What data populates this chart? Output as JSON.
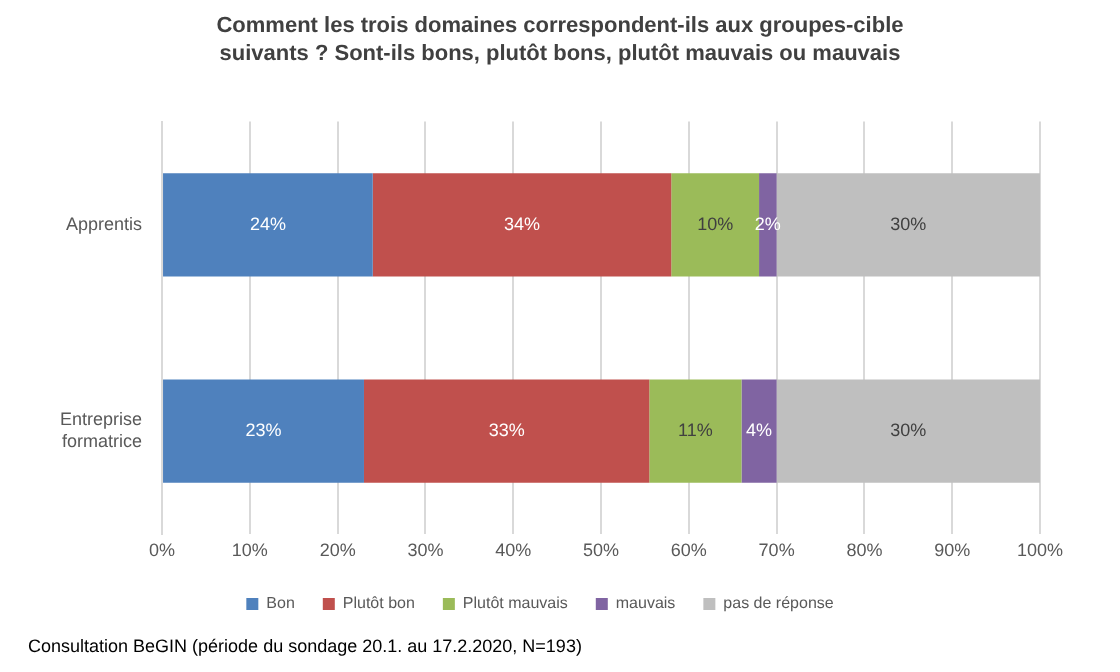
{
  "chart_data": {
    "type": "bar",
    "orientation": "horizontal",
    "stacked": true,
    "title": "Comment les trois domaines correspondent-ils aux groupes-cible suivants ? Sont-ils bons, plutôt bons, plutôt mauvais ou mauvais",
    "categories": [
      "Apprentis",
      "Entreprise formatrice"
    ],
    "series": [
      {
        "name": "Bon",
        "color": "#4f81bd",
        "values": [
          24,
          23
        ],
        "value_labels": [
          "24%",
          "23%"
        ]
      },
      {
        "name": "Plutôt bon",
        "color": "#c0504d",
        "values": [
          34,
          32.5
        ],
        "value_labels": [
          "34%",
          "33%"
        ]
      },
      {
        "name": "Plutôt mauvais",
        "color": "#9bbb59",
        "values": [
          10,
          10.5
        ],
        "value_labels": [
          "10%",
          "11%"
        ]
      },
      {
        "name": "mauvais",
        "color": "#8064a2",
        "values": [
          2,
          4
        ],
        "value_labels": [
          "2%",
          "4%"
        ]
      },
      {
        "name": "pas de réponse",
        "color": "#bfbfbf",
        "values": [
          30,
          30
        ],
        "value_labels": [
          "30%",
          "30%"
        ]
      }
    ],
    "xlim": [
      0,
      100
    ],
    "xticks": [
      {
        "value": 0,
        "label": "0%"
      },
      {
        "value": 10,
        "label": "10%"
      },
      {
        "value": 20,
        "label": "20%"
      },
      {
        "value": 30,
        "label": "30%"
      },
      {
        "value": 40,
        "label": "40%"
      },
      {
        "value": 50,
        "label": "50%"
      },
      {
        "value": 60,
        "label": "60%"
      },
      {
        "value": 70,
        "label": "70%"
      },
      {
        "value": 80,
        "label": "80%"
      },
      {
        "value": 90,
        "label": "90%"
      },
      {
        "value": 100,
        "label": "100%"
      }
    ],
    "grid": "x",
    "legend": "bottom",
    "annotations": [
      "Consultation BeGIN (période du sondage 20.1. au 17.2.2020, N=193)"
    ]
  }
}
